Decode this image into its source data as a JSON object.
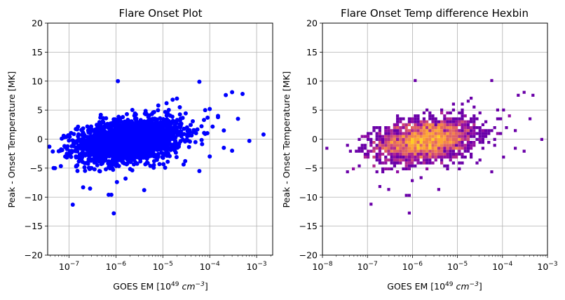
{
  "chart_data": [
    {
      "type": "scatter",
      "title": "Flare Onset Plot",
      "xlabel": {
        "base": "GOES EM [10",
        "sup": "49",
        "mid": " ",
        "unit": "cm",
        "unit_sup": "−3",
        "end": "]"
      },
      "ylabel": "Peak - Onset Temperature [MK]",
      "xscale": "log",
      "xlim": [
        3.5e-08,
        0.0022
      ],
      "ylim": [
        -20,
        20
      ],
      "xticks": [
        {
          "value": 1e-07,
          "base": "10",
          "exp": "−7"
        },
        {
          "value": 1e-06,
          "base": "10",
          "exp": "−6"
        },
        {
          "value": 1e-05,
          "base": "10",
          "exp": "−5"
        },
        {
          "value": 0.0001,
          "base": "10",
          "exp": "−4"
        },
        {
          "value": 0.001,
          "base": "10",
          "exp": "−3"
        }
      ],
      "yticks": [
        "−20",
        "−15",
        "−10",
        "−5",
        "0",
        "5",
        "10",
        "15",
        "20"
      ],
      "grid": true,
      "marker_color": "#0000ff",
      "cloud": {
        "log10_x_center": -5.7,
        "log10_x_spread": 0.55,
        "y_center": -0.2,
        "y_spread": 1.8,
        "count": 2200,
        "y_trend_per_decade": 0.9
      },
      "points": [
        [
          5e-08,
          -5.0
        ],
        [
          6.5e-08,
          -2.0
        ],
        [
          7e-08,
          0.1
        ],
        [
          8e-08,
          -1.2
        ],
        [
          9e-08,
          -2.5
        ],
        [
          1.2e-07,
          -11.3
        ],
        [
          1.4e-07,
          -3.0
        ],
        [
          1.5e-07,
          -4.5
        ],
        [
          2e-07,
          -8.3
        ],
        [
          2.5e-07,
          -4.0
        ],
        [
          3e-07,
          -3.5
        ],
        [
          3.5e-07,
          -5.2
        ],
        [
          4e-07,
          -4.5
        ],
        [
          7e-07,
          -9.6
        ],
        [
          8e-07,
          -9.6
        ],
        [
          9e-07,
          -12.8
        ],
        [
          1.1e-06,
          10.0
        ],
        [
          1.6e-06,
          -6.8
        ],
        [
          4e-06,
          -8.8
        ],
        [
          8e-06,
          5.8
        ],
        [
          1.2e-05,
          6.2
        ],
        [
          2e-05,
          7.0
        ],
        [
          2.3e-05,
          5.5
        ],
        [
          6e-05,
          9.9
        ],
        [
          8e-05,
          5.0
        ],
        [
          0.0001,
          5.2
        ],
        [
          0.00015,
          3.8
        ],
        [
          0.00022,
          7.6
        ],
        [
          0.0003,
          8.1
        ],
        [
          0.0004,
          3.5
        ],
        [
          0.0005,
          7.8
        ],
        [
          0.0007,
          -0.3
        ],
        [
          0.0014,
          0.8
        ],
        [
          0.0002,
          -1.5
        ],
        [
          0.0003,
          -2.0
        ],
        [
          0.00015,
          4.0
        ],
        [
          6e-05,
          -5.5
        ],
        [
          0.0001,
          -3.0
        ],
        [
          3e-05,
          -3.8
        ],
        [
          0.0002,
          1.5
        ]
      ]
    },
    {
      "type": "heatmap",
      "subtype": "hexbin",
      "title": "Flare Onset Temp difference Hexbin",
      "xlabel": {
        "base": "GOES EM [10",
        "sup": "49",
        "mid": " ",
        "unit": "cm",
        "unit_sup": "−3",
        "end": "]"
      },
      "ylabel": "Peak - Onset Temperature [MK]",
      "xscale": "log",
      "xlim": [
        1e-08,
        0.001
      ],
      "ylim": [
        -20,
        20
      ],
      "xticks": [
        {
          "value": 1e-08,
          "base": "10",
          "exp": "−8"
        },
        {
          "value": 1e-07,
          "base": "10",
          "exp": "−7"
        },
        {
          "value": 1e-06,
          "base": "10",
          "exp": "−6"
        },
        {
          "value": 1e-05,
          "base": "10",
          "exp": "−5"
        },
        {
          "value": 0.0001,
          "base": "10",
          "exp": "−4"
        },
        {
          "value": 0.001,
          "base": "10",
          "exp": "−3"
        }
      ],
      "yticks": [
        "−20",
        "−15",
        "−10",
        "−5",
        "0",
        "5",
        "10",
        "15",
        "20"
      ],
      "grid": true,
      "colormap": [
        "#0d0887",
        "#3b049a",
        "#6a00a8",
        "#900da4",
        "#b12a90",
        "#cc4778",
        "#e16462",
        "#f2844b",
        "#fca636",
        "#fcce25"
      ]
    }
  ]
}
